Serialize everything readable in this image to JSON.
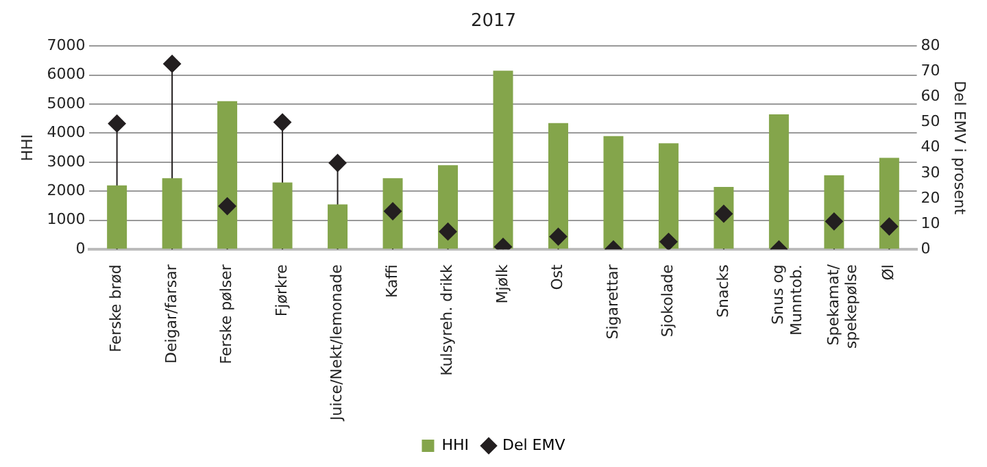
{
  "chart_data": {
    "type": "bar",
    "title": "2017",
    "ylabel": "HHI",
    "y2label": "Del EMV i prosent",
    "categories": [
      "Ferske brød",
      "Deigar/farsar",
      "Ferske pølser",
      "Fjørkre",
      "Juice/Nekt/lemonade",
      "Kaffi",
      "Kulsyreh. drikk",
      "Mjølk",
      "Ost",
      "Sigarettar",
      "Sjokolade",
      "Snacks",
      "Snus og\nMunntob.",
      "Spekamat/\nspekepølse",
      "Øl"
    ],
    "series": [
      {
        "name": "HHI",
        "color": "#84a54b",
        "values": [
          2200,
          2450,
          5100,
          2300,
          1550,
          2450,
          2900,
          6150,
          4350,
          3900,
          3650,
          2150,
          4650,
          2550,
          3150
        ]
      },
      {
        "name": "Del EMV",
        "type": "lollipop",
        "axis": "y2",
        "color": "#231f20",
        "marker": "diamond",
        "values": [
          49.5,
          73,
          17,
          50,
          34,
          15,
          7,
          1,
          5,
          0,
          3,
          14,
          0,
          11,
          9
        ]
      }
    ],
    "ylim": [
      0,
      7000
    ],
    "yticks": [
      0,
      1000,
      2000,
      3000,
      4000,
      5000,
      6000,
      7000
    ],
    "y2lim": [
      0,
      80
    ],
    "y2ticks": [
      0,
      10,
      20,
      30,
      40,
      50,
      60,
      70,
      80
    ],
    "grid": "y",
    "legend": "bottom"
  }
}
